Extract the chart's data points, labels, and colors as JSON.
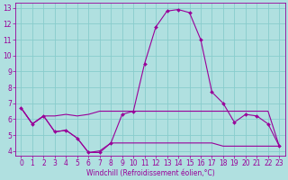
{
  "background_color": "#b0e0e0",
  "line_color": "#990099",
  "grid_color": "#88cccc",
  "xlabel": "Windchill (Refroidissement éolien,°C)",
  "xlim": [
    -0.5,
    23.5
  ],
  "ylim": [
    3.7,
    13.3
  ],
  "xticks": [
    0,
    1,
    2,
    3,
    4,
    5,
    6,
    7,
    8,
    9,
    10,
    11,
    12,
    13,
    14,
    15,
    16,
    17,
    18,
    19,
    20,
    21,
    22,
    23
  ],
  "yticks": [
    4,
    5,
    6,
    7,
    8,
    9,
    10,
    11,
    12,
    13
  ],
  "series_main": {
    "x": [
      0,
      1,
      2,
      3,
      4,
      5,
      6,
      7,
      8,
      9,
      10,
      11,
      12,
      13,
      14,
      15,
      16,
      17,
      18,
      19,
      20,
      21,
      22,
      23
    ],
    "y": [
      6.7,
      5.7,
      6.2,
      5.2,
      5.3,
      4.8,
      3.9,
      3.9,
      4.5,
      6.3,
      6.5,
      9.5,
      11.8,
      12.8,
      12.9,
      12.7,
      11.0,
      7.7,
      7.0,
      5.8,
      6.3,
      6.2,
      5.7,
      4.3
    ]
  },
  "series_upper": {
    "x": [
      0,
      1,
      2,
      3,
      4,
      5,
      6,
      7,
      8,
      9,
      10,
      11,
      12,
      13,
      14,
      15,
      16,
      17,
      18,
      19,
      20,
      21,
      22,
      23
    ],
    "y": [
      6.7,
      5.7,
      6.2,
      6.2,
      6.3,
      6.2,
      6.3,
      6.5,
      6.5,
      6.5,
      6.5,
      6.5,
      6.5,
      6.5,
      6.5,
      6.5,
      6.5,
      6.5,
      6.5,
      6.5,
      6.5,
      6.5,
      6.5,
      4.3
    ]
  },
  "series_lower": {
    "x": [
      0,
      1,
      2,
      3,
      4,
      5,
      6,
      7,
      8,
      9,
      10,
      11,
      12,
      13,
      14,
      15,
      16,
      17,
      18,
      19,
      20,
      21,
      22,
      23
    ],
    "y": [
      6.7,
      5.7,
      6.2,
      5.2,
      5.3,
      4.8,
      3.9,
      4.0,
      4.5,
      4.5,
      4.5,
      4.5,
      4.5,
      4.5,
      4.5,
      4.5,
      4.5,
      4.5,
      4.3,
      4.3,
      4.3,
      4.3,
      4.3,
      4.3
    ]
  },
  "xlabel_fontsize": 5.5,
  "tick_fontsize": 5.5,
  "linewidth": 0.8,
  "markersize": 2.0
}
